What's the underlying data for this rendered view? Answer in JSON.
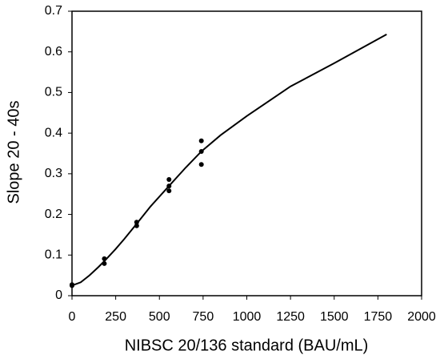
{
  "chart_data": {
    "type": "scatter",
    "x_label": "NIBSC  20/136 standard (BAU/mL)",
    "y_label": "Slope 20 - 40s",
    "xlim": [
      0,
      2000
    ],
    "xticks": [
      0,
      250,
      500,
      750,
      1000,
      1250,
      1500,
      1750,
      2000
    ],
    "ylim": [
      0,
      0.7
    ],
    "yticks": [
      0,
      0.1,
      0.2,
      0.3,
      0.4,
      0.5,
      0.6,
      0.7
    ],
    "series": [
      {
        "type": "scatter",
        "color": "#000000",
        "x": [
          0,
          0,
          185,
          185,
          370,
          370,
          555,
          555,
          555,
          740,
          740,
          740
        ],
        "values": [
          0.027,
          0.025,
          0.091,
          0.079,
          0.181,
          0.172,
          0.286,
          0.27,
          0.258,
          0.381,
          0.355,
          0.323
        ]
      },
      {
        "type": "line",
        "color": "#000000",
        "x": [
          0,
          50,
          100,
          150,
          185,
          250,
          300,
          370,
          450,
          555,
          650,
          740,
          850,
          1000,
          1250,
          1500,
          1800
        ],
        "values": [
          0.025,
          0.033,
          0.05,
          0.07,
          0.085,
          0.115,
          0.14,
          0.177,
          0.22,
          0.27,
          0.315,
          0.355,
          0.395,
          0.442,
          0.515,
          0.572,
          0.643
        ]
      }
    ]
  }
}
